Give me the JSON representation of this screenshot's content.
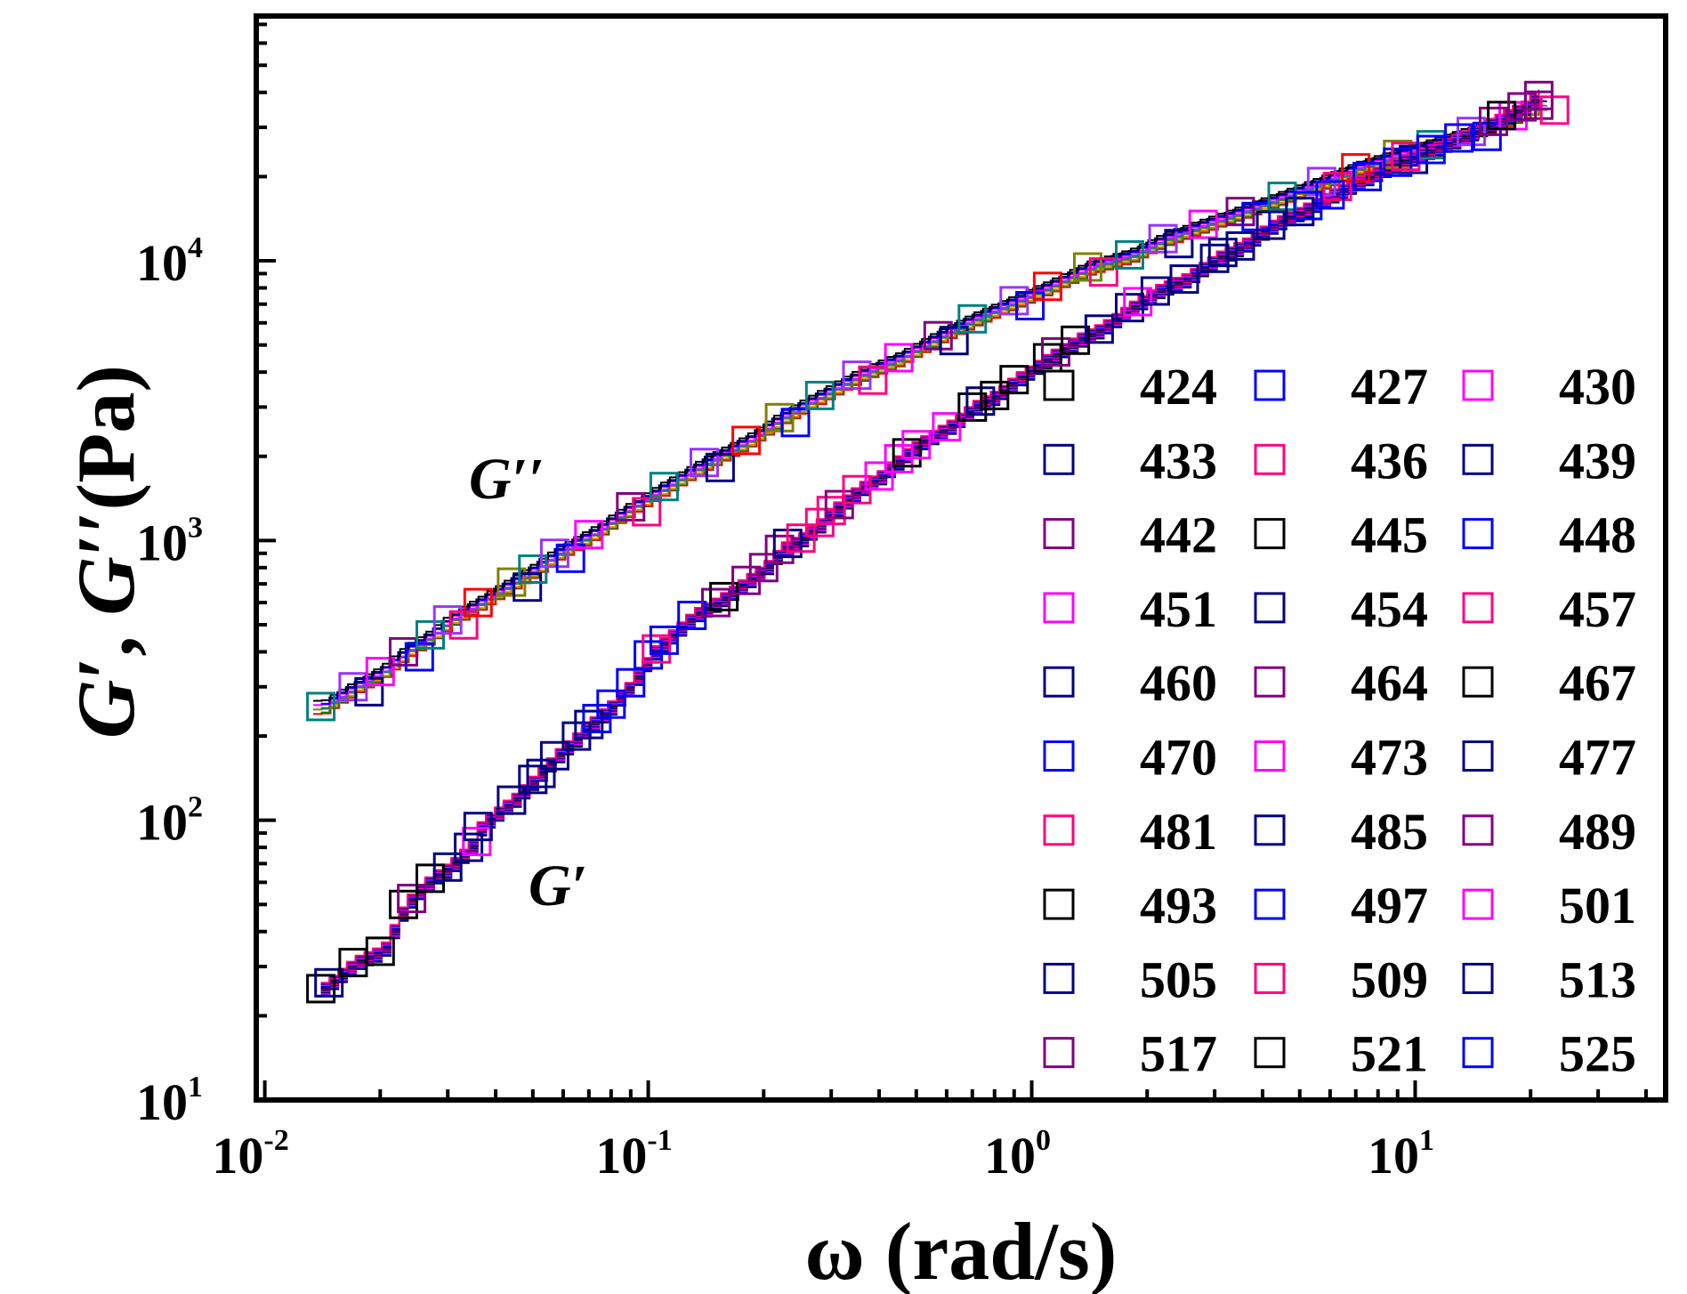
{
  "chart_data": {
    "type": "scatter",
    "title": "",
    "xlabel": "ω (rad/s)",
    "ylabel_parts": [
      "G",
      "′",
      ", ",
      "G",
      "′′",
      "(Pa)"
    ],
    "xscale": "log",
    "yscale": "log",
    "xlim": [
      0.0095,
      45
    ],
    "ylim": [
      10,
      75000
    ],
    "x_ticks": [
      {
        "base": "10",
        "exp": "-2",
        "value": 0.01
      },
      {
        "base": "10",
        "exp": "-1",
        "value": 0.1
      },
      {
        "base": "10",
        "exp": "0",
        "value": 1
      },
      {
        "base": "10",
        "exp": "1",
        "value": 10
      }
    ],
    "y_ticks": [
      {
        "base": "10",
        "exp": "1",
        "value": 10
      },
      {
        "base": "10",
        "exp": "2",
        "value": 100
      },
      {
        "base": "10",
        "exp": "3",
        "value": 1000
      },
      {
        "base": "10",
        "exp": "4",
        "value": 10000
      }
    ],
    "annotations": [
      {
        "text": "G′′",
        "near": "storage/loss upper curve, left"
      },
      {
        "text": "G′",
        "near": "lower curve, left"
      }
    ],
    "series": [
      {
        "name": "424",
        "color": "#000000"
      },
      {
        "name": "427",
        "color": "#0000ff"
      },
      {
        "name": "430",
        "color": "#ff00ff"
      },
      {
        "name": "433",
        "color": "#000080"
      },
      {
        "name": "436",
        "color": "#ff0080"
      },
      {
        "name": "439",
        "color": "#000080"
      },
      {
        "name": "442",
        "color": "#800080"
      },
      {
        "name": "445",
        "color": "#000000"
      },
      {
        "name": "448",
        "color": "#0000ff"
      },
      {
        "name": "451",
        "color": "#ff00ff"
      },
      {
        "name": "454",
        "color": "#000080"
      },
      {
        "name": "457",
        "color": "#ff0080"
      },
      {
        "name": "460",
        "color": "#000080"
      },
      {
        "name": "464",
        "color": "#800080"
      },
      {
        "name": "467",
        "color": "#000000"
      },
      {
        "name": "470",
        "color": "#0000ff"
      },
      {
        "name": "473",
        "color": "#ff00ff"
      },
      {
        "name": "477",
        "color": "#000080"
      },
      {
        "name": "481",
        "color": "#ff0080"
      },
      {
        "name": "485",
        "color": "#000080"
      },
      {
        "name": "489",
        "color": "#800080"
      },
      {
        "name": "493",
        "color": "#000000"
      },
      {
        "name": "497",
        "color": "#0000ff"
      },
      {
        "name": "501",
        "color": "#ff00ff"
      },
      {
        "name": "505",
        "color": "#000080"
      },
      {
        "name": "509",
        "color": "#ff0080"
      },
      {
        "name": "513",
        "color": "#000080"
      },
      {
        "name": "517",
        "color": "#800080"
      },
      {
        "name": "521",
        "color": "#000000"
      },
      {
        "name": "525",
        "color": "#0000ff"
      }
    ],
    "curve_colors_G2": [
      "#ff0000",
      "#008000",
      "#ff8000",
      "#808000",
      "#008080",
      "#9933ff",
      "#ff00ff",
      "#0000ff",
      "#000080",
      "#000000"
    ],
    "master_curve_G1": {
      "x": [
        0.014,
        0.017,
        0.02,
        0.023,
        0.027,
        0.03,
        0.034,
        0.036,
        0.044,
        0.05,
        0.057,
        0.065,
        0.07,
        0.08,
        0.09,
        0.1,
        0.11,
        0.13,
        0.15,
        0.18,
        0.2,
        0.22,
        0.25,
        0.28,
        0.3,
        0.35,
        0.4,
        0.45,
        0.5,
        0.6,
        0.7,
        0.8,
        0.9,
        1.1,
        1.3,
        1.5,
        1.8,
        2.1,
        2.5,
        3.0,
        3.5,
        4.2,
        5.0,
        6.0,
        7.5,
        9.0,
        11,
        13,
        16,
        19,
        21
      ],
      "y": [
        25,
        31,
        34,
        50,
        62,
        68,
        80,
        95,
        118,
        140,
        170,
        200,
        220,
        260,
        310,
        390,
        440,
        540,
        600,
        720,
        800,
        930,
        1020,
        1160,
        1280,
        1520,
        1700,
        1960,
        2200,
        2550,
        3000,
        3300,
        3760,
        4500,
        5200,
        5700,
        6800,
        7800,
        8600,
        10200,
        11300,
        13400,
        15000,
        17200,
        20000,
        22500,
        25000,
        27500,
        31500,
        35500,
        39000
      ]
    },
    "master_curve_G2": {
      "x": [
        0.014,
        0.017,
        0.02,
        0.023,
        0.027,
        0.03,
        0.036,
        0.044,
        0.05,
        0.057,
        0.07,
        0.09,
        0.11,
        0.14,
        0.18,
        0.22,
        0.28,
        0.35,
        0.45,
        0.57,
        0.7,
        0.9,
        1.1,
        1.4,
        1.8,
        2.2,
        2.8,
        3.5,
        4.5,
        5.7,
        7.0,
        9.0,
        11,
        14,
        18,
        21
      ],
      "y": [
        255,
        300,
        340,
        400,
        460,
        520,
        600,
        710,
        790,
        900,
        1050,
        1320,
        1560,
        1900,
        2280,
        2750,
        3300,
        3900,
        4500,
        5400,
        6200,
        7200,
        8100,
        9500,
        10500,
        12000,
        13500,
        15000,
        17000,
        19200,
        21500,
        24000,
        26000,
        29000,
        33000,
        36000
      ]
    }
  }
}
